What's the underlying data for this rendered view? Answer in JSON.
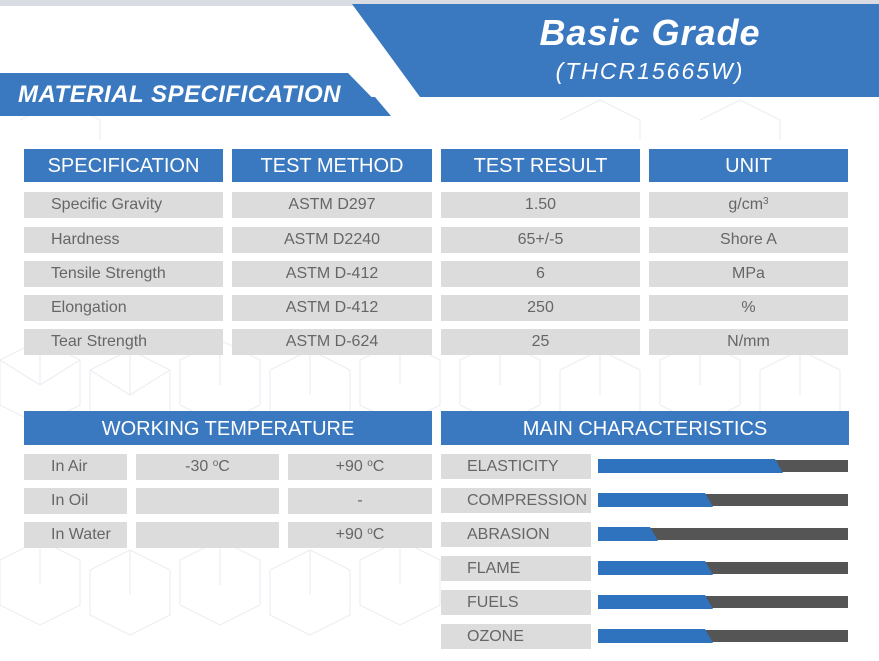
{
  "header": {
    "grade_title": "Basic Grade",
    "grade_code": "(THCR15665W)",
    "section_title": "MATERIAL SPECIFICATION"
  },
  "spec_table": {
    "headers": [
      "SPECIFICATION",
      "TEST METHOD",
      "TEST RESULT",
      "UNIT"
    ],
    "rows": [
      {
        "spec": "Specific Gravity",
        "method": "ASTM D297",
        "result": "1.50",
        "unit": "g/cm",
        "unit_sup": "3"
      },
      {
        "spec": "Hardness",
        "method": "ASTM D2240",
        "result": "65+/-5",
        "unit": "Shore A"
      },
      {
        "spec": "Tensile Strength",
        "method": "ASTM D-412",
        "result": "6",
        "unit": "MPa"
      },
      {
        "spec": "Elongation",
        "method": "ASTM D-412",
        "result": "250",
        "unit": "%"
      },
      {
        "spec": "Tear Strength",
        "method": "ASTM D-624",
        "result": "25",
        "unit": "N/mm"
      }
    ]
  },
  "working_temperature": {
    "title": "WORKING TEMPERATURE",
    "degree_mark": "o",
    "rows": [
      {
        "medium": "In Air",
        "min": "-30",
        "min_unit": "C",
        "max": "+90",
        "max_unit": "C"
      },
      {
        "medium": "In Oil",
        "min": "",
        "min_unit": "",
        "max": "-",
        "max_unit": ""
      },
      {
        "medium": "In Water",
        "min": "",
        "min_unit": "",
        "max": "+90",
        "max_unit": "C"
      }
    ]
  },
  "main_characteristics": {
    "title": "MAIN CHARACTERISTICS",
    "items": [
      {
        "label": "ELASTICITY",
        "level": 0.74
      },
      {
        "label": "COMPRESSION",
        "level": 0.46
      },
      {
        "label": "ABRASION",
        "level": 0.24
      },
      {
        "label": "FLAME",
        "level": 0.46
      },
      {
        "label": "FUELS",
        "level": 0.46
      },
      {
        "label": "OZONE",
        "level": 0.46
      }
    ]
  },
  "colors": {
    "brand_blue": "#3a78bf",
    "bar_blue": "#2f72bd",
    "bar_track": "#555555",
    "cell_gray": "#dcdcdc"
  }
}
